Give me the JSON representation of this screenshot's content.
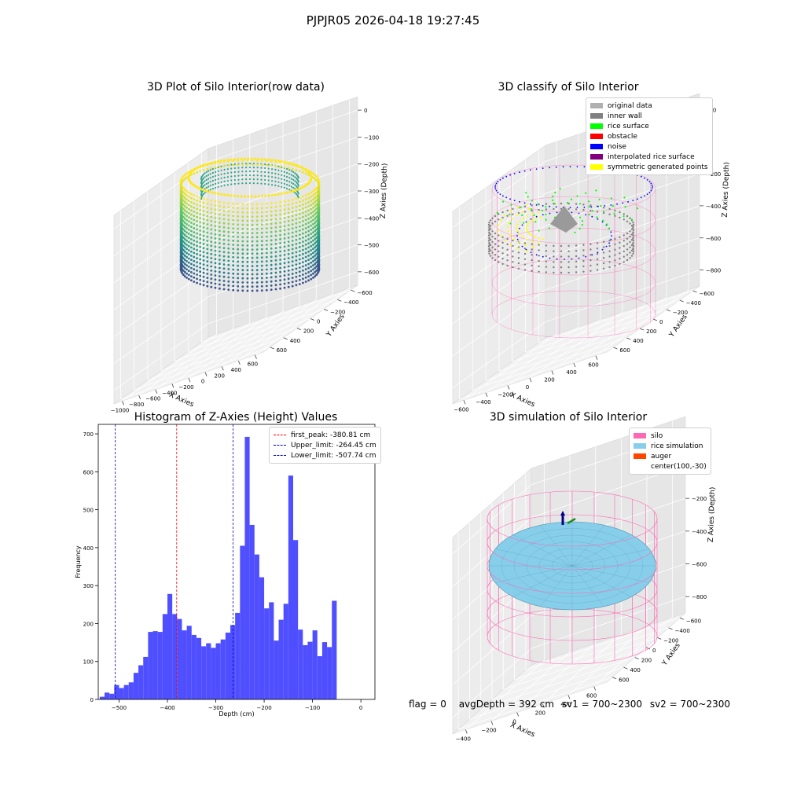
{
  "suptitle": "PJPJR05 2026-04-18 19:27:45",
  "status": {
    "flag": "flag = 0",
    "avg_depth": "avgDepth = 392 cm",
    "sv1": "sv1 = 700~2300",
    "sv2": "sv2 = 700~2300"
  },
  "chart_data": [
    {
      "type": "scatter",
      "title": "3D Plot of Silo Interior(row data)",
      "xlabel": "X Axies",
      "ylabel": "Y Axies",
      "zlabel": "Z Axies (Depth)",
      "x_ticks": [
        "−1000",
        "−800",
        "−600",
        "−400",
        "−200",
        "0",
        "200",
        "400",
        "600"
      ],
      "y_ticks": [
        "600",
        "400",
        "200",
        "0",
        "−200",
        "−400",
        "−600"
      ],
      "z_ticks": [
        "0",
        "−100",
        "−200",
        "−300",
        "−400",
        "−500",
        "−600"
      ],
      "colormap": "viridis",
      "colors": {
        "top": "#fde725",
        "mid": "#5ec962",
        "low": "#21918c",
        "bottom": "#3b528b"
      }
    },
    {
      "type": "scatter",
      "title": "3D classify of Silo Interior",
      "xlabel": "X Axies",
      "ylabel": "Y Axies",
      "zlabel": "Z Axies (Depth)",
      "x_ticks": [
        "−600",
        "−400",
        "−200",
        "0",
        "200",
        "400",
        "600"
      ],
      "y_ticks": [
        "600",
        "400",
        "200",
        "0",
        "−200",
        "−400",
        "−600"
      ],
      "z_ticks": [
        "200",
        "0",
        "−200",
        "−400",
        "−600",
        "−800"
      ],
      "legend": [
        {
          "name": "original data",
          "color": "#b0b0b0"
        },
        {
          "name": "inner wall",
          "color": "#808080"
        },
        {
          "name": "rice surface",
          "color": "#00ff00"
        },
        {
          "name": "obstacle",
          "color": "#ff0000"
        },
        {
          "name": "noise",
          "color": "#0000ff"
        },
        {
          "name": "interpolated rice surface",
          "color": "#800080"
        },
        {
          "name": "symmetric generated points",
          "color": "#ffff00"
        }
      ],
      "extra_colors": {
        "silo": "#ff69b4"
      }
    },
    {
      "type": "bar",
      "title": "Histogram of Z-Axies (Height) Values",
      "xlabel": "Depth (cm)",
      "ylabel": "Frequency",
      "xlim": [
        -543,
        29
      ],
      "ylim": [
        0,
        725
      ],
      "x_ticks": [
        -500,
        -400,
        -300,
        -200,
        -100,
        0
      ],
      "y_ticks": [
        0,
        100,
        200,
        300,
        400,
        500,
        600,
        700
      ],
      "bin_start": -540,
      "bin_width": 10,
      "values": [
        7,
        18,
        15,
        38,
        30,
        38,
        45,
        70,
        90,
        112,
        178,
        180,
        178,
        225,
        278,
        225,
        212,
        182,
        194,
        170,
        162,
        140,
        148,
        136,
        148,
        158,
        176,
        196,
        228,
        405,
        692,
        460,
        382,
        322,
        240,
        256,
        155,
        210,
        252,
        590,
        420,
        184,
        143,
        152,
        182,
        114,
        151,
        138,
        260
      ],
      "bar_color": "#4b4bff",
      "vlines": [
        {
          "label": "first_peak: -380.81 cm",
          "x": -380.81,
          "color": "#ff0000"
        },
        {
          "label": "Upper_limit: -264.45 cm",
          "x": -264.45,
          "color": "#0000cc"
        },
        {
          "label": "Lower_limit: -507.74 cm",
          "x": -507.74,
          "color": "#0000cc"
        }
      ]
    },
    {
      "type": "scatter",
      "title": "3D simulation of Silo Interior",
      "xlabel": "X Axies",
      "ylabel": "Y Axies",
      "zlabel": "Z Axies (Depth)",
      "x_ticks": [
        "−400",
        "−200",
        "0",
        "200",
        "400",
        "600"
      ],
      "y_ticks": [
        "600",
        "400",
        "200",
        "0",
        "−200",
        "−400",
        "−600"
      ],
      "z_ticks": [
        "200",
        "0",
        "−200",
        "−400",
        "−600",
        "−800"
      ],
      "legend": [
        {
          "name": "silo",
          "color": "#ff69b4"
        },
        {
          "name": "rice simulation",
          "color": "#87ceeb"
        },
        {
          "name": "auger",
          "color": "#ff4500"
        },
        {
          "name": "center(100,-30)",
          "color": ""
        }
      ]
    }
  ]
}
